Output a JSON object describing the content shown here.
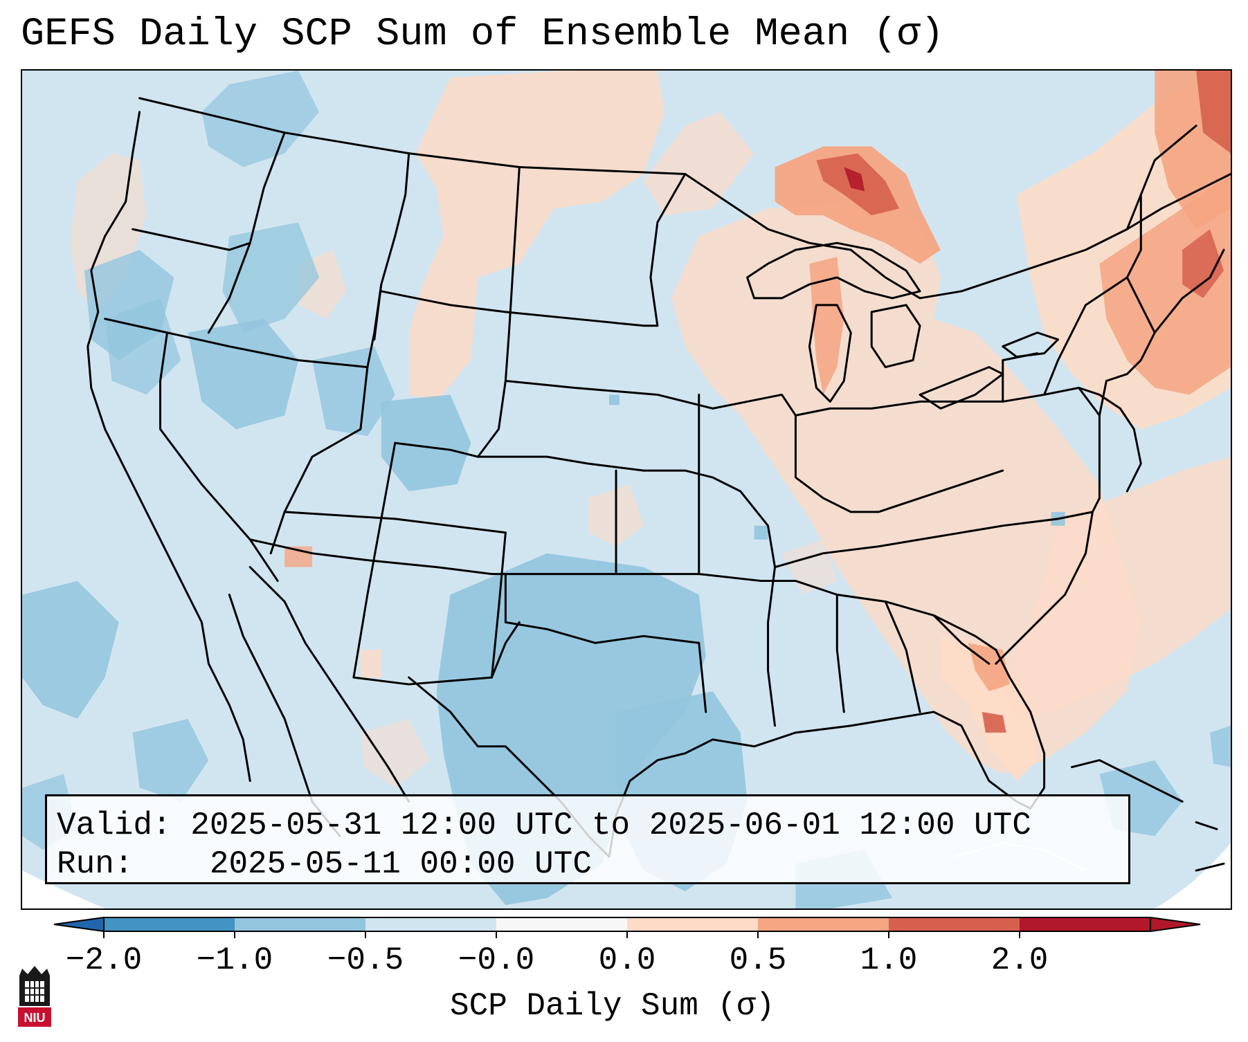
{
  "title": "GEFS Daily SCP Sum of Ensemble Mean (σ)",
  "info": {
    "valid_label": "Valid:",
    "valid_value": "2025-05-31 12:00 UTC to 2025-06-01 12:00 UTC",
    "run_label": "Run:",
    "run_value": "2025-05-11 00:00 UTC"
  },
  "colorbar": {
    "label": "SCP Daily Sum (σ)",
    "ticks": [
      "−2.0",
      "−1.0",
      "−0.5",
      "−0.0",
      "0.0",
      "0.5",
      "1.0",
      "2.0"
    ],
    "colors": [
      "#4393c3",
      "#92c5de",
      "#d1e5f0",
      "#f7f7f7",
      "#fddbc7",
      "#f4a582",
      "#d6604d",
      "#b2182b"
    ],
    "extend_low_color": "#2166ac",
    "extend_high_color": "#b2182b"
  },
  "map": {
    "background_color": "#d1e5f0",
    "region": "Contiguous United States"
  },
  "logo": {
    "text": "NIU"
  }
}
